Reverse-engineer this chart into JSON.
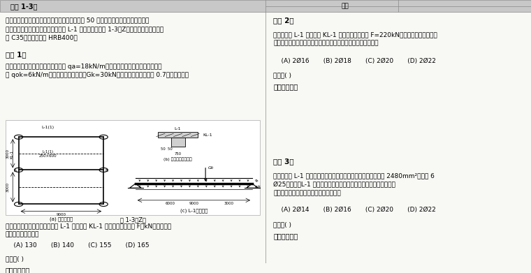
{
  "bg_color": "#f8f8f5",
  "header_bg": "#c8c8c8",
  "title_left": "【题 1-3】",
  "title_right": "【题 2】",
  "intro": "某办公楼为现浇混凝土框架结构，设计使用年限 50 年，安全等级为二级，其二层局\n部平面图、主次梁节点示意图和次梁 L-1 的计算简图如图 1-3（Z）所示，混凝土强度等\n级 C35，钢筋均采用 HRB400。",
  "section1_title": "【题 1】",
  "section1_body": "假定，次梁上的永久均布荷载标准值 qa=18kN/m（包括自重），可变均布荷载标准\n值 qok=6kN/m，永久集中荷载标准值Gk=30kN，可变荷载组合值系数 0.7。试问，当不",
  "right_body2": "假定，次梁 L-1 传给主梁 KL-1 的集中荷载设计值 F=220kN，且该集中荷载全部由\n附加吊筋承担。试问，附加吊筋的配置选用下列何项最为合适？",
  "q2_choices": "    (A) 2Ø16       (B) 2Ø18       (C) 2Ø20       (D) 2Ø22",
  "q2_answer": "答案：( )",
  "q2_solution": "主要解答过程",
  "bottom_q_left": "考虑楼面活载折减系数时，次梁 L-1 传给主梁 KL-1 的集中荷载设计值 F（kN），与下列\n何项数值最为接近？",
  "bottom_choices_left": "    (A) 130       (B) 140       (C) 155       (D) 165",
  "bottom_answer_left": "答案：( )",
  "bottom_solution_left": "主要解答过程",
  "section3_title": "【题 3】",
  "section3_body": "假定，次梁 L-1 跨中下部纵向受力钢筋按计算所需的截面面积为 2480mm²，实配 6\nØ25，试问，L-1 支座上部的纵向钢筋，至少应采用下列何项配置？\n提示：梁顶钢筋在主梁内满足锚固要求。",
  "q3_choices": "    (A) 2Ø14       (B) 2Ø16       (C) 2Ø20       (D) 2Ø22",
  "q3_answer": "答案：( )",
  "q3_solution": "主要解答过程",
  "figure_caption": "图 1-3（Z）",
  "font_size_body": 6.5,
  "font_size_title": 7.5,
  "font_size_header": 7.0
}
